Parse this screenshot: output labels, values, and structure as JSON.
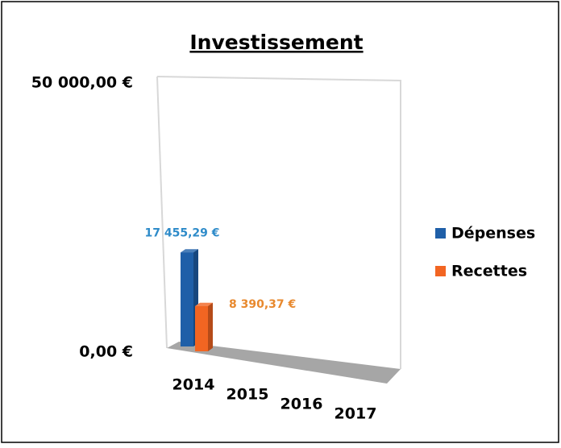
{
  "chart_data": {
    "type": "bar3d",
    "title": "Investissement",
    "categories": [
      "2014",
      "2015",
      "2016",
      "2017"
    ],
    "series": [
      {
        "name": "Dépenses",
        "color": "#1f5fa8",
        "label_color": "#2e8bc9",
        "values": [
          17455.29,
          null,
          null,
          null
        ],
        "value_labels": [
          "17 455,29 €",
          null,
          null,
          null
        ]
      },
      {
        "name": "Recettes",
        "color": "#f26522",
        "label_color": "#e8892e",
        "values": [
          8390.37,
          null,
          null,
          null
        ],
        "value_labels": [
          "8 390,37 €",
          null,
          null,
          null
        ]
      }
    ],
    "ylim": [
      0,
      50000
    ],
    "yticks": [
      {
        "value": 0,
        "label": "0,00 €"
      },
      {
        "value": 50000,
        "label": "50 000,00 €"
      }
    ],
    "legend": "right"
  }
}
